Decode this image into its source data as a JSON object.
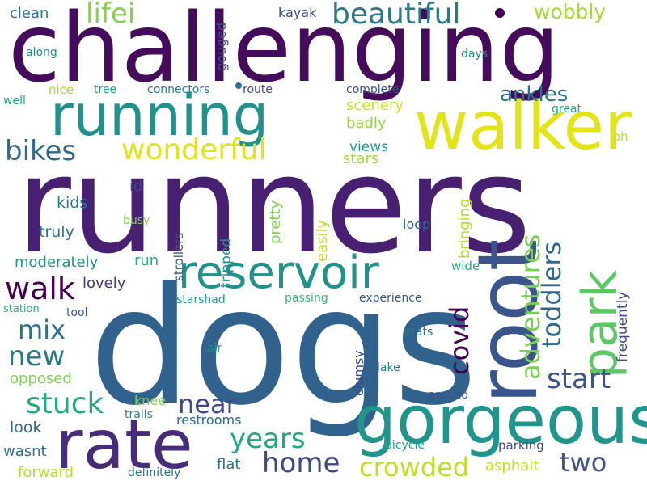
{
  "words": [
    {
      "text": "runners",
      "color": "#482072"
    },
    {
      "text": "dogs",
      "color": "#31628e"
    },
    {
      "text": "challenging",
      "color": "#440c5a"
    },
    {
      "text": "running",
      "color": "#21918c"
    },
    {
      "text": "walker",
      "color": "#e2e418"
    },
    {
      "text": "root",
      "color": "#3a548c"
    },
    {
      "text": "gorgeous",
      "color": "#1f958b"
    },
    {
      "text": "rate",
      "color": "#472c7a"
    },
    {
      "text": "reservoir",
      "color": "#21918c"
    },
    {
      "text": "park",
      "color": "#5dc863"
    },
    {
      "text": "beautiful",
      "color": "#2a788e"
    },
    {
      "text": "wonderful",
      "color": "#e2e418"
    },
    {
      "text": "lifei",
      "color": "#84d44b"
    },
    {
      "text": "bikes",
      "color": "#31688e"
    },
    {
      "text": "walk",
      "color": "#440154"
    },
    {
      "text": "adventures",
      "color": "#7ad151"
    },
    {
      "text": "toddlers",
      "color": "#31688e"
    },
    {
      "text": "covid",
      "color": "#440154"
    },
    {
      "text": "start",
      "color": "#3a548c"
    },
    {
      "text": "stuck",
      "color": "#22a884"
    },
    {
      "text": "mix",
      "color": "#2c728e"
    },
    {
      "text": "new",
      "color": "#2a788e"
    },
    {
      "text": "near",
      "color": "#3e4a89"
    },
    {
      "text": "home",
      "color": "#3e4989"
    },
    {
      "text": "years",
      "color": "#22a884"
    },
    {
      "text": "crowded",
      "color": "#bddf26"
    },
    {
      "text": "two",
      "color": "#3b528b"
    },
    {
      "text": "ankles",
      "color": "#2c728e"
    },
    {
      "text": "wobbly",
      "color": "#a5db36"
    },
    {
      "text": "clean",
      "color": "#2c728e"
    },
    {
      "text": "kayak",
      "color": "#3e4989"
    },
    {
      "text": "along",
      "color": "#21918c"
    },
    {
      "text": "days",
      "color": "#21918c"
    },
    {
      "text": "gouged",
      "color": "#3b528b"
    },
    {
      "text": "nice",
      "color": "#a5db36"
    },
    {
      "text": "tree",
      "color": "#20a386"
    },
    {
      "text": "connectors",
      "color": "#2a788e"
    },
    {
      "text": "route",
      "color": "#3e4989"
    },
    {
      "text": "complete",
      "color": "#3b528b"
    },
    {
      "text": "well",
      "color": "#20a386"
    },
    {
      "text": "great",
      "color": "#22a884"
    },
    {
      "text": "scenery",
      "color": "#d0e11c"
    },
    {
      "text": "badly",
      "color": "#95d840"
    },
    {
      "text": "oh",
      "color": "#b5de2b"
    },
    {
      "text": "views",
      "color": "#1f9e89"
    },
    {
      "text": "stars",
      "color": "#a5db36"
    },
    {
      "text": "id",
      "color": "#3e4989"
    },
    {
      "text": "kids",
      "color": "#2a788e"
    },
    {
      "text": "truly",
      "color": "#2c728e"
    },
    {
      "text": "busy",
      "color": "#84d44b"
    },
    {
      "text": "strollers",
      "color": "#3b528b"
    },
    {
      "text": "tripped",
      "color": "#21918c"
    },
    {
      "text": "pretty",
      "color": "#7ad151"
    },
    {
      "text": "easily",
      "color": "#bddf26"
    },
    {
      "text": "bringing",
      "color": "#b5de2b"
    },
    {
      "text": "loop",
      "color": "#31688e"
    },
    {
      "text": "wide",
      "color": "#22a884"
    },
    {
      "text": "frequently",
      "color": "#3e4989"
    },
    {
      "text": "moderately",
      "color": "#21918c"
    },
    {
      "text": "run",
      "color": "#22a884"
    },
    {
      "text": "lovely",
      "color": "#46337e"
    },
    {
      "text": "station",
      "color": "#2ab07f"
    },
    {
      "text": "tool",
      "color": "#3b528b"
    },
    {
      "text": "starshad",
      "color": "#1f9e89"
    },
    {
      "text": "passing",
      "color": "#35b779"
    },
    {
      "text": "experience",
      "color": "#3b528b"
    },
    {
      "text": "seats",
      "color": "#2c728e"
    },
    {
      "text": "air",
      "color": "#1f958b"
    },
    {
      "text": "clumsy",
      "color": "#3e4989"
    },
    {
      "text": "lake",
      "color": "#2a788e"
    },
    {
      "text": "opposed",
      "color": "#7ad151"
    },
    {
      "text": "around",
      "color": "#3b528b"
    },
    {
      "text": "knee",
      "color": "#7ad151"
    },
    {
      "text": "trails",
      "color": "#26828e"
    },
    {
      "text": "restrooms",
      "color": "#31688e"
    },
    {
      "text": "look",
      "color": "#31688e"
    },
    {
      "text": "wasnt",
      "color": "#2c728e"
    },
    {
      "text": "flat",
      "color": "#2c728e"
    },
    {
      "text": "bicycle",
      "color": "#1f9e89"
    },
    {
      "text": "parking",
      "color": "#3e4989"
    },
    {
      "text": "forward",
      "color": "#b5de2b"
    },
    {
      "text": "definitely",
      "color": "#2c728e"
    },
    {
      "text": "asphalt",
      "color": "#c2df23"
    }
  ],
  "dots": [
    {
      "color": "#440154"
    },
    {
      "color": "#2c728e"
    }
  ]
}
